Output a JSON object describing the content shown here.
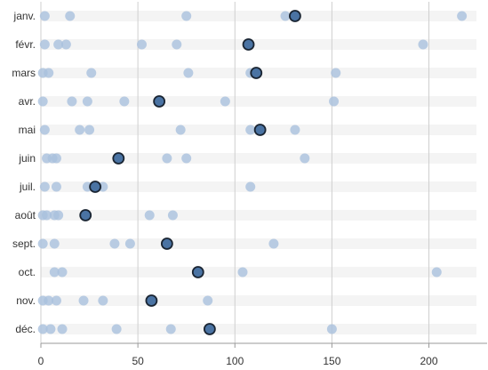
{
  "chart_data": {
    "type": "scatter",
    "title": "",
    "xlabel": "",
    "ylabel": "",
    "xlim": [
      0,
      230
    ],
    "xticks": [
      0,
      50,
      100,
      150,
      200
    ],
    "categories": [
      "janv.",
      "févr.",
      "mars",
      "avr.",
      "mai",
      "juin",
      "juil.",
      "août",
      "sept.",
      "oct.",
      "nov.",
      "déc."
    ],
    "grid": "vertical",
    "series": [
      {
        "role": "background",
        "color": "#a9c0dd",
        "points": [
          [
            2,
            15,
            75,
            126,
            217
          ],
          [
            2,
            9,
            13,
            52,
            70,
            197
          ],
          [
            1,
            4,
            26,
            76,
            108,
            152
          ],
          [
            1,
            16,
            24,
            43,
            95,
            151
          ],
          [
            2,
            20,
            25,
            72,
            108,
            131
          ],
          [
            3,
            6,
            8,
            65,
            75,
            136
          ],
          [
            2,
            8,
            24,
            29,
            32,
            108
          ],
          [
            1,
            3,
            7,
            9,
            56,
            68
          ],
          [
            1,
            7,
            38,
            46,
            120
          ],
          [
            7,
            11,
            104,
            204
          ],
          [
            1,
            4,
            8,
            22,
            32,
            86
          ],
          [
            1,
            5,
            11,
            39,
            67,
            150
          ]
        ]
      },
      {
        "role": "highlight",
        "color": "#4a73a3",
        "values": [
          131,
          107,
          111,
          61,
          113,
          40,
          28,
          23,
          65,
          81,
          57,
          87
        ]
      }
    ]
  }
}
